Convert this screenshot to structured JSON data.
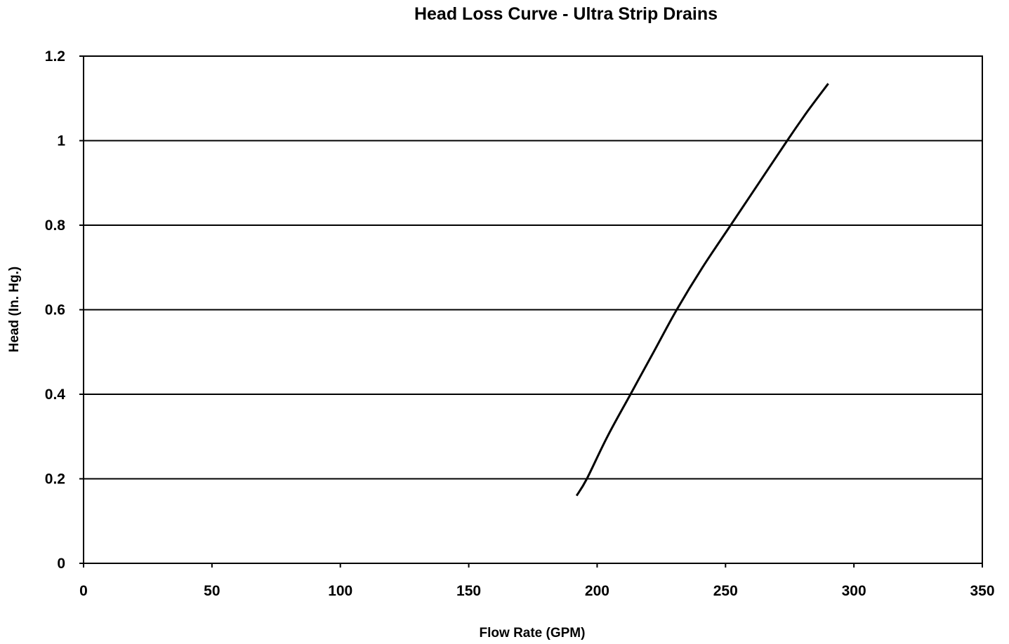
{
  "chart_data": {
    "type": "line",
    "title": "Head Loss Curve - Ultra Strip Drains",
    "xlabel": "Flow Rate (GPM)",
    "ylabel": "Head (In. Hg.)",
    "xlim": [
      0,
      350
    ],
    "ylim": [
      0,
      1.2
    ],
    "x_ticks": [
      0,
      50,
      100,
      150,
      200,
      250,
      300,
      350
    ],
    "y_ticks": [
      0,
      0.2,
      0.4,
      0.6,
      0.8,
      1,
      1.2
    ],
    "x_tick_labels": [
      "0",
      "50",
      "100",
      "150",
      "200",
      "250",
      "300",
      "350"
    ],
    "y_tick_labels": [
      "0",
      "0.2",
      "0.4",
      "0.6",
      "0.8",
      "1",
      "1.2"
    ],
    "grid": "horizontal",
    "legend": "none",
    "line_color": "#000000",
    "series": [
      {
        "x": [
          192,
          196,
          204,
          213,
          222,
          231,
          241,
          252,
          263,
          274,
          282,
          290
        ],
        "y": [
          0.16,
          0.2,
          0.3,
          0.4,
          0.5,
          0.6,
          0.7,
          0.8,
          0.9,
          1.0,
          1.07,
          1.135
        ]
      }
    ]
  }
}
